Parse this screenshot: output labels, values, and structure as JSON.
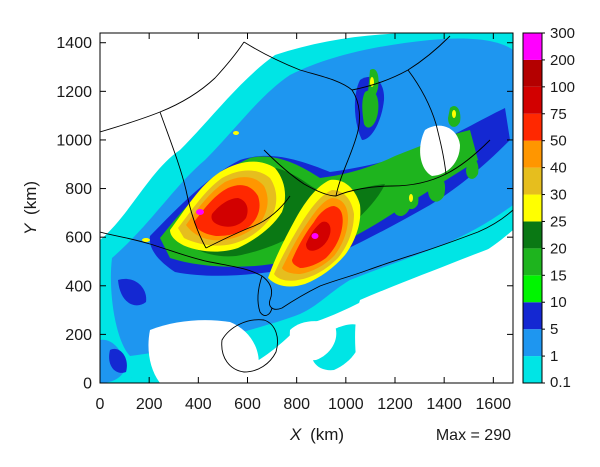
{
  "chart_data": {
    "type": "heatmap",
    "xlabel_var": "X",
    "xlabel_unit": "(km)",
    "ylabel_var": "Y",
    "ylabel_unit": "(km)",
    "xlim": [
      0,
      1680
    ],
    "ylim": [
      0,
      1440
    ],
    "x_ticks": [
      0,
      200,
      400,
      600,
      800,
      1000,
      1200,
      1400,
      1600
    ],
    "y_ticks": [
      0,
      200,
      400,
      600,
      800,
      1000,
      1200,
      1400
    ],
    "annotation": "Max = 290",
    "colorbar": {
      "levels": [
        "0.1",
        "1",
        "5",
        "10",
        "15",
        "20",
        "25",
        "30",
        "40",
        "50",
        "75",
        "100",
        "200",
        "300"
      ],
      "colors": [
        "#00e5e5",
        "#1e96f0",
        "#1428d2",
        "#00f500",
        "#1eb41e",
        "#0a7814",
        "#ffff00",
        "#e6be1e",
        "#ff9600",
        "#ff2800",
        "#d20000",
        "#b40000",
        "#ff00ff"
      ]
    }
  }
}
